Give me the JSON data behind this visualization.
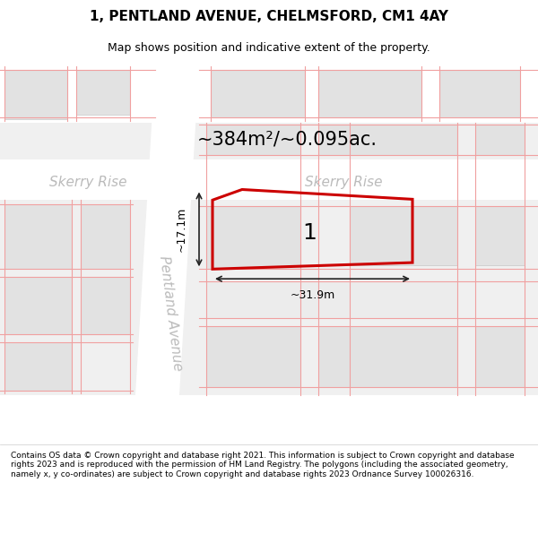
{
  "title": "1, PENTLAND AVENUE, CHELMSFORD, CM1 4AY",
  "subtitle": "Map shows position and indicative extent of the property.",
  "footer": "Contains OS data © Crown copyright and database right 2021. This information is subject to Crown copyright and database rights 2023 and is reproduced with the permission of HM Land Registry. The polygons (including the associated geometry, namely x, y co-ordinates) are subject to Crown copyright and database rights 2023 Ordnance Survey 100026316.",
  "area_label": "~384m²/~0.095ac.",
  "width_label": "~31.9m",
  "height_label": "~17.1m",
  "number_label": "1",
  "bg_color": "#ffffff",
  "map_gray": "#f0f0f0",
  "road_color": "#ffffff",
  "building_color": "#e2e2e2",
  "building_border": "#c8c8c8",
  "plot_line_color": "#cc0000",
  "faint_line_color": "#f0a0a0",
  "street_label_color": "#bbbbbb",
  "dim_line_color": "#222222",
  "title_fontsize": 11,
  "subtitle_fontsize": 9,
  "footer_fontsize": 6.5,
  "area_fontsize": 15,
  "dim_fontsize": 9,
  "number_fontsize": 18,
  "street_fontsize": 11
}
